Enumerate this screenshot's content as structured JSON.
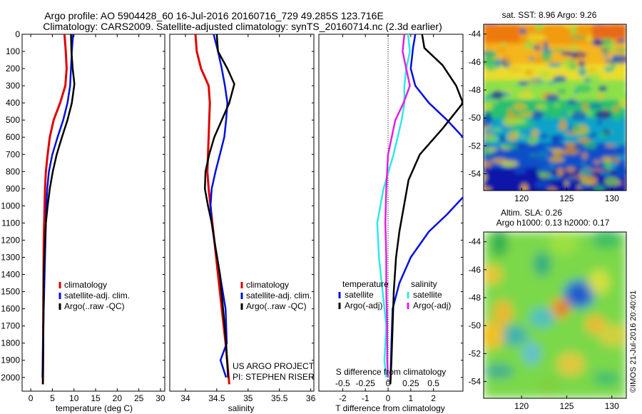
{
  "header": {
    "line1": "Argo profile: AO 5904428_60 16-Jul-2016 20160716_729 49.285S 123.716E",
    "line2": "Climatology: CARS2009. Satellite-adjusted climatology: synTS_20160714.nc (2.3d earlier)"
  },
  "credit": "©IMOS 21-Jul-2016 20:40:01",
  "project": {
    "line1": "US ARGO PROJECT",
    "line2": "PI: STEPHEN RISER"
  },
  "colors": {
    "climatology": "#e00000",
    "satellite": "#0010dd",
    "argo": "#000000",
    "sat_s": "#30e8e8",
    "argo_s": "#e020e0"
  },
  "chart_data": [
    {
      "type": "line",
      "name": "temperature",
      "xlabel": "temperature (deg C)",
      "ylabel": "",
      "xlim": [
        -2,
        31
      ],
      "ylim": [
        2080,
        0
      ],
      "xticks": [
        "0",
        "5",
        "10",
        "15",
        "20",
        "25",
        "30"
      ],
      "yticks": [
        "0",
        "100",
        "200",
        "300",
        "400",
        "500",
        "600",
        "700",
        "800",
        "900",
        "1000",
        "1100",
        "1200",
        "1300",
        "1400",
        "1500",
        "1600",
        "1700",
        "1800",
        "1900",
        "2000"
      ],
      "legend": [
        "climatology",
        "satellite-adj. clim.",
        "Argo(..raw -QC)"
      ],
      "legend_placement": "lower-right",
      "series": [
        {
          "name": "climatology",
          "points": [
            [
              7.8,
              0
            ],
            [
              8.1,
              100
            ],
            [
              8.3,
              200
            ],
            [
              8.0,
              300
            ],
            [
              6.8,
              400
            ],
            [
              5.3,
              500
            ],
            [
              4.4,
              600
            ],
            [
              3.9,
              700
            ],
            [
              3.5,
              800
            ],
            [
              3.3,
              900
            ],
            [
              3.2,
              1000
            ],
            [
              3.1,
              1100
            ],
            [
              3.0,
              1200
            ],
            [
              2.95,
              1400
            ],
            [
              2.9,
              1600
            ],
            [
              2.85,
              1800
            ],
            [
              2.8,
              2040
            ]
          ]
        },
        {
          "name": "satellite-adj. clim.",
          "points": [
            [
              9.8,
              0
            ],
            [
              9.5,
              100
            ],
            [
              9.3,
              200
            ],
            [
              9.1,
              300
            ],
            [
              8.5,
              400
            ],
            [
              7.5,
              500
            ],
            [
              6.2,
              600
            ],
            [
              5.0,
              700
            ],
            [
              4.2,
              800
            ],
            [
              3.8,
              900
            ],
            [
              3.6,
              1000
            ],
            [
              3.4,
              1200
            ],
            [
              3.2,
              1400
            ],
            [
              2.9,
              1700
            ],
            [
              2.7,
              2000
            ]
          ]
        },
        {
          "name": "Argo(..raw -QC)",
          "points": [
            [
              9.3,
              0
            ],
            [
              9.4,
              100
            ],
            [
              9.7,
              200
            ],
            [
              10.1,
              290
            ],
            [
              9.5,
              400
            ],
            [
              8.5,
              500
            ],
            [
              7.2,
              600
            ],
            [
              6.0,
              700
            ],
            [
              5.1,
              800
            ],
            [
              4.4,
              900
            ],
            [
              3.9,
              1000
            ],
            [
              3.5,
              1100
            ],
            [
              3.3,
              1200
            ],
            [
              3.0,
              1400
            ],
            [
              2.95,
              1600
            ],
            [
              2.9,
              1800
            ],
            [
              2.8,
              2040
            ]
          ]
        }
      ]
    },
    {
      "type": "line",
      "name": "salinity",
      "xlabel": "salinity",
      "xlim": [
        33.75,
        36.05
      ],
      "ylim": [
        2080,
        0
      ],
      "xticks": [
        "34",
        "34.5",
        "35",
        "35.5",
        "36"
      ],
      "legend": [
        "climatology",
        "satellite-adj. clim.",
        "Argo(..raw -QC)"
      ],
      "legend_placement": "lower-right",
      "series": [
        {
          "name": "climatology",
          "points": [
            [
              34.16,
              0
            ],
            [
              34.18,
              100
            ],
            [
              34.25,
              200
            ],
            [
              34.37,
              300
            ],
            [
              34.39,
              400
            ],
            [
              34.38,
              500
            ],
            [
              34.37,
              600
            ],
            [
              34.36,
              700
            ],
            [
              34.35,
              800
            ],
            [
              34.37,
              900
            ],
            [
              34.4,
              1000
            ],
            [
              34.43,
              1100
            ],
            [
              34.46,
              1200
            ],
            [
              34.52,
              1400
            ],
            [
              34.58,
              1600
            ],
            [
              34.64,
              1800
            ],
            [
              34.7,
              2040
            ]
          ]
        },
        {
          "name": "satellite-adj. clim.",
          "points": [
            [
              34.45,
              0
            ],
            [
              34.52,
              100
            ],
            [
              34.58,
              200
            ],
            [
              34.63,
              300
            ],
            [
              34.67,
              400
            ],
            [
              34.65,
              500
            ],
            [
              34.62,
              600
            ],
            [
              34.55,
              700
            ],
            [
              34.48,
              800
            ],
            [
              34.42,
              900
            ],
            [
              34.4,
              1000
            ],
            [
              34.42,
              1100
            ],
            [
              34.46,
              1200
            ],
            [
              34.55,
              1400
            ],
            [
              34.64,
              1600
            ],
            [
              34.66,
              1800
            ],
            [
              34.56,
              1900
            ],
            [
              34.65,
              2000
            ]
          ]
        },
        {
          "name": "Argo(..raw -QC)",
          "points": [
            [
              34.5,
              0
            ],
            [
              34.52,
              100
            ],
            [
              34.67,
              200
            ],
            [
              34.78,
              290
            ],
            [
              34.7,
              400
            ],
            [
              34.58,
              500
            ],
            [
              34.46,
              600
            ],
            [
              34.38,
              700
            ],
            [
              34.32,
              800
            ],
            [
              34.31,
              900
            ],
            [
              34.36,
              1000
            ],
            [
              34.42,
              1100
            ],
            [
              34.46,
              1200
            ],
            [
              34.55,
              1400
            ],
            [
              34.6,
              1600
            ],
            [
              34.65,
              1800
            ],
            [
              34.68,
              2000
            ]
          ]
        }
      ]
    },
    {
      "type": "line",
      "name": "difference",
      "xlabel": "T difference from climatology",
      "xlabel_top": "S difference from climatology",
      "xlim": [
        -3.05,
        3.3
      ],
      "ylim": [
        2080,
        0
      ],
      "xticks": [
        "-2",
        "-1",
        "0",
        "1",
        "2"
      ],
      "xticks_s": [
        "-0.5",
        "-0.25",
        "0",
        "0.25",
        "0.5"
      ],
      "legend_groups": [
        {
          "title": "temperature",
          "items": [
            "satellite",
            "Argo(-adj)"
          ]
        },
        {
          "title": "salinity",
          "items": [
            "satellite",
            "Argo(-adj)"
          ]
        }
      ],
      "series": [
        {
          "name": "temperature satellite",
          "points": [
            [
              1.2,
              0
            ],
            [
              1.1,
              80
            ],
            [
              1.0,
              200
            ],
            [
              1.2,
              300
            ],
            [
              1.8,
              400
            ],
            [
              2.6,
              500
            ],
            [
              3.3,
              600
            ]
          ]
        },
        {
          "name": "temperature satellite (deep)",
          "points": [
            [
              3.3,
              950
            ],
            [
              2.6,
              1050
            ],
            [
              1.8,
              1150
            ],
            [
              1.0,
              1300
            ],
            [
              0.5,
              1450
            ],
            [
              0.2,
              1600
            ],
            [
              0.15,
              1800
            ],
            [
              0.1,
              2040
            ]
          ]
        },
        {
          "name": "temperature Argo(-adj)",
          "points": [
            [
              1.5,
              0
            ],
            [
              1.6,
              80
            ],
            [
              2.4,
              180
            ],
            [
              3.0,
              300
            ],
            [
              3.3,
              400
            ],
            [
              2.4,
              550
            ],
            [
              1.4,
              700
            ],
            [
              0.9,
              850
            ],
            [
              0.7,
              1000
            ],
            [
              0.5,
              1150
            ],
            [
              0.35,
              1300
            ],
            [
              0.25,
              1500
            ],
            [
              0.2,
              1700
            ],
            [
              0.15,
              1900
            ],
            [
              0.1,
              2040
            ]
          ]
        },
        {
          "name": "salinity satellite",
          "points": [
            [
              0.22,
              0
            ],
            [
              0.24,
              100
            ],
            [
              0.2,
              200
            ],
            [
              0.18,
              300
            ],
            [
              0.18,
              400
            ],
            [
              0.15,
              500
            ],
            [
              0.06,
              700
            ],
            [
              -0.05,
              900
            ],
            [
              -0.12,
              1100
            ],
            [
              -0.1,
              1300
            ],
            [
              -0.06,
              1500
            ],
            [
              -0.02,
              1700
            ],
            [
              -0.04,
              1900
            ],
            [
              -0.02,
              2000
            ]
          ]
        },
        {
          "name": "salinity Argo(-adj)",
          "points": [
            [
              0.18,
              0
            ],
            [
              0.16,
              100
            ],
            [
              0.2,
              200
            ],
            [
              0.24,
              300
            ],
            [
              0.17,
              400
            ],
            [
              0.08,
              500
            ],
            [
              0.0,
              700
            ],
            [
              -0.02,
              900
            ],
            [
              -0.03,
              1100
            ],
            [
              -0.02,
              1300
            ],
            [
              -0.02,
              1500
            ],
            [
              -0.01,
              1700
            ],
            [
              -0.01,
              1900
            ],
            [
              0.0,
              2000
            ]
          ]
        }
      ]
    },
    {
      "type": "heatmap",
      "name": "sst-map",
      "title": "sat. SST: 8.96 Argo: 9.26",
      "xticks": [
        "120",
        "125",
        "130"
      ],
      "yticks": [
        "-44",
        "-46",
        "-48",
        "-50",
        "-52",
        "-54"
      ],
      "xlim": [
        115.8,
        131.6
      ],
      "ylim": [
        -55.2,
        -43.3
      ]
    },
    {
      "type": "heatmap",
      "name": "sla-map",
      "title_line1": "Altim. SLA: 0.26",
      "title_line2": "Argo h1000: 0.13 h2000: 0.17",
      "xticks": [
        "120",
        "125",
        "130"
      ],
      "yticks": [
        "-44",
        "-46",
        "-48",
        "-50",
        "-52",
        "-54"
      ],
      "xlim": [
        115.8,
        131.6
      ],
      "ylim": [
        -55.2,
        -43.3
      ]
    }
  ]
}
